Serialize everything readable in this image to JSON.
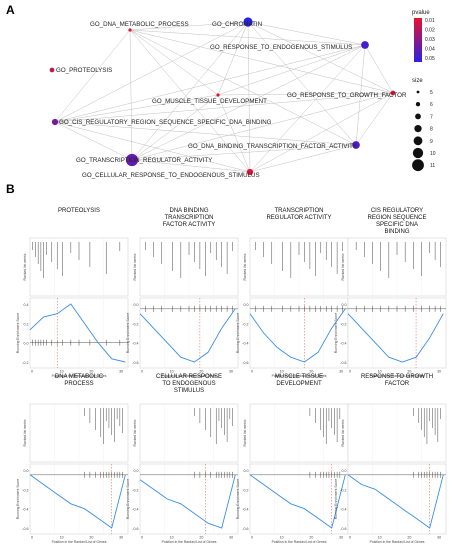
{
  "panels": {
    "a_label": "A",
    "b_label": "B"
  },
  "network": {
    "terms": [
      {
        "id": "dna_meta",
        "label": "GO_DNA_METABOLIC_PROCESS",
        "pvalue": 0.007,
        "size": 5
      },
      {
        "id": "chromatin",
        "label": "GO_CHROMATIN",
        "pvalue": 0.055,
        "size": 9
      },
      {
        "id": "resp_endo",
        "label": "GO_RESPONSE_TO_ENDOGENOUS_STIMULUS",
        "pvalue": 0.048,
        "size": 8
      },
      {
        "id": "proteolysis",
        "label": "GO_PROTEOLYSIS",
        "pvalue": 0.015,
        "size": 6
      },
      {
        "id": "muscle",
        "label": "GO_MUSCLE_TISSUE_DEVELOPMENT",
        "pvalue": 0.005,
        "size": 5
      },
      {
        "id": "growth",
        "label": "GO_RESPONSE_TO_GROWTH_FACTOR",
        "pvalue": 0.006,
        "size": 6
      },
      {
        "id": "cis_reg",
        "label": "GO_CIS_REGULATORY_REGION_SEQUENCE_SPECIFIC_DNA_BINDING",
        "pvalue": 0.035,
        "size": 7
      },
      {
        "id": "dna_bind",
        "label": "GO_DNA_BINDING_TRANSCRIPTION_FACTOR_ACTIVITY",
        "pvalue": 0.045,
        "size": 8
      },
      {
        "id": "txn_reg",
        "label": "GO_TRANSCRIPTION_REGULATOR_ACTIVITY",
        "pvalue": 0.04,
        "size": 11
      },
      {
        "id": "cell_resp",
        "label": "GO_CELLULAR_RESPONSE_TO_ENDOGENOUS_STIMULUS",
        "pvalue": 0.008,
        "size": 7
      }
    ],
    "edges": [
      [
        "dna_meta",
        "chromatin"
      ],
      [
        "dna_meta",
        "resp_endo"
      ],
      [
        "dna_meta",
        "muscle"
      ],
      [
        "dna_meta",
        "cis_reg"
      ],
      [
        "dna_meta",
        "txn_reg"
      ],
      [
        "dna_meta",
        "cell_resp"
      ],
      [
        "dna_meta",
        "dna_bind"
      ],
      [
        "dna_meta",
        "growth"
      ],
      [
        "chromatin",
        "cis_reg"
      ],
      [
        "chromatin",
        "txn_reg"
      ],
      [
        "chromatin",
        "dna_bind"
      ],
      [
        "chromatin",
        "resp_endo"
      ],
      [
        "chromatin",
        "muscle"
      ],
      [
        "chromatin",
        "growth"
      ],
      [
        "chromatin",
        "cell_resp"
      ],
      [
        "resp_endo",
        "growth"
      ],
      [
        "resp_endo",
        "cell_resp"
      ],
      [
        "resp_endo",
        "cis_reg"
      ],
      [
        "resp_endo",
        "muscle"
      ],
      [
        "resp_endo",
        "txn_reg"
      ],
      [
        "resp_endo",
        "dna_bind"
      ],
      [
        "muscle",
        "growth"
      ],
      [
        "muscle",
        "cis_reg"
      ],
      [
        "muscle",
        "txn_reg"
      ],
      [
        "muscle",
        "cell_resp"
      ],
      [
        "growth",
        "cell_resp"
      ],
      [
        "growth",
        "dna_bind"
      ],
      [
        "growth",
        "cis_reg"
      ],
      [
        "growth",
        "txn_reg"
      ],
      [
        "cis_reg",
        "txn_reg"
      ],
      [
        "cis_reg",
        "dna_bind"
      ],
      [
        "cis_reg",
        "cell_resp"
      ],
      [
        "dna_bind",
        "txn_reg"
      ],
      [
        "dna_bind",
        "cell_resp"
      ],
      [
        "txn_reg",
        "cell_resp"
      ]
    ],
    "legend": {
      "pvalue_title": "pvalue",
      "pvalue_ticks": [
        "0.01",
        "0.02",
        "0.03",
        "0.04",
        "0.05"
      ],
      "size_title": "size",
      "size_ticks": [
        "5",
        "6",
        "7",
        "8",
        "9",
        "10",
        "11"
      ],
      "color_high": "#e8132a",
      "color_low": "#2b1fe6"
    }
  },
  "chart_data": [
    {
      "type": "line",
      "title": "PROTEOLYSIS",
      "xlabel": "Position in the Ranked List of Genes",
      "ylabel": "Running Enrichment Score",
      "ylabel_top": "Ranked list metric",
      "x": [
        0,
        5,
        10,
        15,
        20,
        25,
        30,
        35
      ],
      "y": [
        0.2,
        0.4,
        0.45,
        0.6,
        0.3,
        0.0,
        -0.25,
        -0.3
      ],
      "xticks": [
        "0",
        "10",
        "20",
        "30"
      ],
      "yticks": [
        "0.4",
        "0.2",
        "0.0",
        "-0.2"
      ],
      "peak_x": 10,
      "hits": [
        1,
        2,
        3,
        4,
        5,
        6,
        8,
        10,
        12,
        15,
        18,
        22,
        28,
        33
      ]
    },
    {
      "type": "line",
      "title": "DNA BINDING\nTRANSCRIPTION\nFACTOR ACTIVITY",
      "xlabel": "Position in the Ranked List of Genes",
      "ylabel": "Running Enrichment Score",
      "ylabel_top": "Ranked list metric",
      "x": [
        0,
        5,
        10,
        15,
        20,
        25,
        30,
        35
      ],
      "y": [
        -0.05,
        -0.2,
        -0.35,
        -0.5,
        -0.55,
        -0.45,
        -0.2,
        0.0
      ],
      "xticks": [
        "0",
        "10",
        "20",
        "30"
      ],
      "yticks": [
        "0.0",
        "-0.2",
        "-0.4",
        "-0.6"
      ],
      "peak_x": 22,
      "hits": [
        2,
        5,
        8,
        12,
        15,
        18,
        20,
        22,
        24,
        26,
        28,
        30,
        32,
        34
      ]
    },
    {
      "type": "line",
      "title": "TRANSCRIPTION\nREGULATOR ACTIVITY",
      "xlabel": "Position in the Ranked List of Genes",
      "ylabel": "Running Enrichment Score",
      "ylabel_top": "Ranked list metric",
      "x": [
        0,
        5,
        10,
        15,
        20,
        25,
        30,
        35
      ],
      "y": [
        -0.05,
        -0.25,
        -0.4,
        -0.5,
        -0.55,
        -0.45,
        -0.2,
        0.0
      ],
      "xticks": [
        "0",
        "10",
        "20",
        "30"
      ],
      "yticks": [
        "0.0",
        "-0.2",
        "-0.4",
        "-0.6"
      ],
      "peak_x": 20,
      "hits": [
        2,
        5,
        8,
        12,
        15,
        18,
        20,
        22,
        24,
        26,
        28,
        30,
        32,
        34
      ]
    },
    {
      "type": "line",
      "title": "CIS REGULATORY\nREGION SEQUENCE\nSPECIFIC DNA\nBINDING",
      "xlabel": "Position in the Ranked List of Genes",
      "ylabel": "Running Enrichment Score",
      "ylabel_top": "Ranked list metric",
      "x": [
        0,
        5,
        10,
        15,
        20,
        25,
        30,
        35
      ],
      "y": [
        -0.05,
        -0.2,
        -0.35,
        -0.5,
        -0.55,
        -0.5,
        -0.3,
        -0.05
      ],
      "xticks": [
        "0",
        "10",
        "20",
        "30"
      ],
      "yticks": [
        "0.0",
        "-0.2",
        "-0.4",
        "-0.6"
      ],
      "peak_x": 25,
      "hits": [
        3,
        6,
        9,
        12,
        15,
        18,
        21,
        24,
        27,
        30,
        32,
        34
      ]
    },
    {
      "type": "line",
      "title": "DNA METABOLIC\nPROCESS",
      "xlabel": "Position in the Ranked List of Genes",
      "ylabel": "Running Enrichment Score",
      "ylabel_top": "Ranked list metric",
      "x": [
        0,
        5,
        10,
        15,
        20,
        25,
        30,
        35
      ],
      "y": [
        0.0,
        -0.1,
        -0.2,
        -0.3,
        -0.35,
        -0.45,
        -0.55,
        0.0
      ],
      "xticks": [
        "0",
        "10",
        "20",
        "30"
      ],
      "yticks": [
        "0.0",
        "-0.2",
        "-0.4",
        "-0.6"
      ],
      "peak_x": 30,
      "hits": [
        20,
        22,
        24,
        26,
        27,
        28,
        29,
        30,
        31,
        32,
        33,
        34
      ]
    },
    {
      "type": "line",
      "title": "CELLULAR RESPONSE\nTO ENDOGENOUS\nSTIMULUS",
      "xlabel": "Position in the Ranked List of Genes",
      "ylabel": "Running Enrichment Score",
      "ylabel_top": "Ranked list metric",
      "x": [
        0,
        5,
        10,
        15,
        20,
        25,
        30,
        35
      ],
      "y": [
        -0.05,
        -0.15,
        -0.25,
        -0.3,
        -0.4,
        -0.5,
        -0.55,
        0.0
      ],
      "xticks": [
        "0",
        "10",
        "20",
        "30"
      ],
      "yticks": [
        "0.0",
        "-0.2",
        "-0.4",
        "-0.6"
      ],
      "peak_x": 24,
      "hits": [
        20,
        22,
        24,
        26,
        28,
        29,
        30,
        31,
        32,
        33,
        34
      ]
    },
    {
      "type": "line",
      "title": "MUSCLE TISSUE\nDEVELOPMENT",
      "xlabel": "Position in the Ranked List of Genes",
      "ylabel": "Running Enrichment Score",
      "ylabel_top": "Ranked list metric",
      "x": [
        0,
        5,
        10,
        15,
        20,
        25,
        30,
        35
      ],
      "y": [
        0.0,
        -0.1,
        -0.2,
        -0.3,
        -0.35,
        -0.45,
        -0.55,
        0.0
      ],
      "xticks": [
        "0",
        "10",
        "20",
        "30"
      ],
      "yticks": [
        "0.0",
        "-0.2",
        "-0.4",
        "-0.6"
      ],
      "peak_x": 30,
      "hits": [
        22,
        24,
        26,
        27,
        28,
        29,
        30,
        31,
        32,
        33
      ]
    },
    {
      "type": "line",
      "title": "RESPONSE TO GROWTH\nFACTOR",
      "xlabel": "Position in the Ranked List of Genes",
      "ylabel": "Running Enrichment Score",
      "ylabel_top": "Ranked list metric",
      "x": [
        0,
        5,
        10,
        15,
        20,
        25,
        30,
        35
      ],
      "y": [
        0.0,
        -0.1,
        -0.15,
        -0.25,
        -0.35,
        -0.45,
        -0.55,
        0.0
      ],
      "xticks": [
        "0",
        "10",
        "20",
        "30"
      ],
      "yticks": [
        "0.0",
        "-0.2",
        "-0.4",
        "-0.6"
      ],
      "peak_x": 30,
      "hits": [
        24,
        26,
        27,
        28,
        29,
        30,
        31,
        32,
        33,
        34
      ]
    }
  ]
}
